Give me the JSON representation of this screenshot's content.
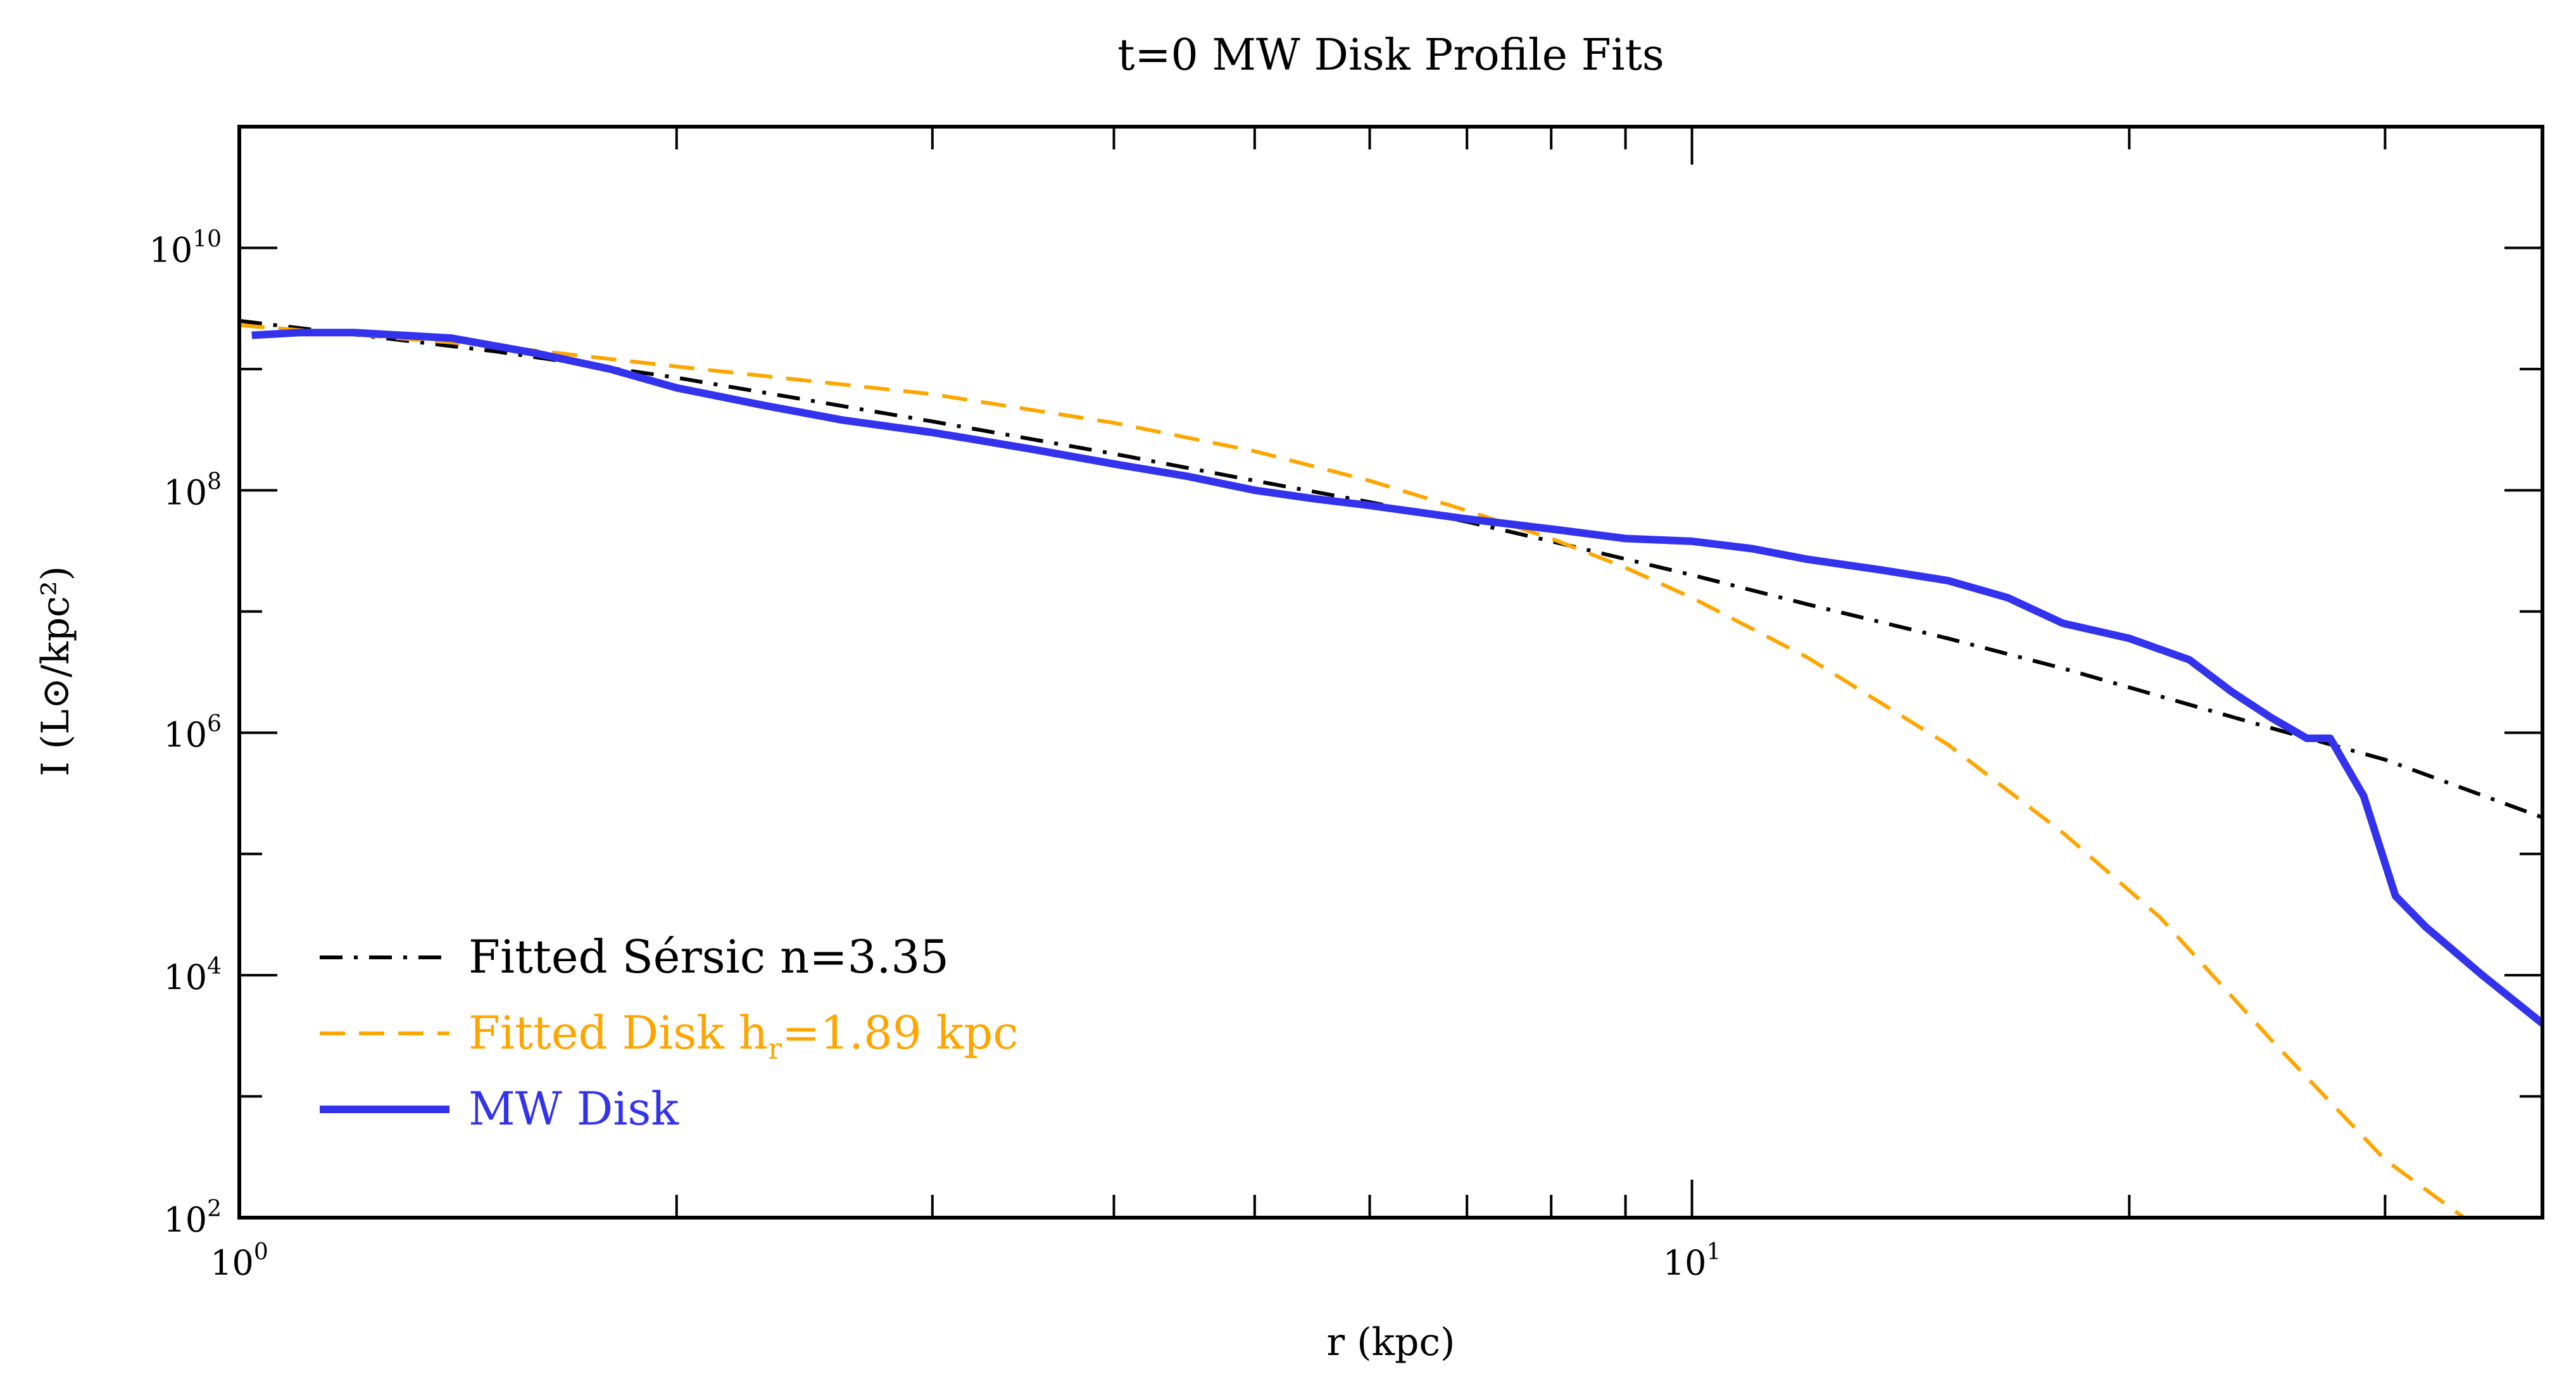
{
  "chart_data": {
    "type": "line",
    "title": "t=0 MW Disk Profile Fits",
    "xlabel": "r (kpc)",
    "ylabel": "I (L⊙/kpc²)",
    "xscale": "log",
    "yscale": "log",
    "xlim": [
      1.0,
      38.5
    ],
    "ylim": [
      100,
      100000000000
    ],
    "x_ticks": [
      {
        "value": 1,
        "base": "10",
        "exp": "0"
      },
      {
        "value": 10,
        "base": "10",
        "exp": "1"
      }
    ],
    "y_ticks": [
      {
        "value": 100,
        "base": "10",
        "exp": "2"
      },
      {
        "value": 10000,
        "base": "10",
        "exp": "4"
      },
      {
        "value": 1000000,
        "base": "10",
        "exp": "6"
      },
      {
        "value": 100000000,
        "base": "10",
        "exp": "8"
      },
      {
        "value": 10000000000,
        "base": "10",
        "exp": "10"
      }
    ],
    "grid": false,
    "legend_position": "lower-left",
    "series": [
      {
        "name": "Fitted Sérsic n=3.35",
        "label_parts": [
          "Fitted Sérsic n=3.35"
        ],
        "color": "#000000",
        "style": "dashdot",
        "x": [
          1.0,
          1.5,
          2.0,
          3.0,
          4.0,
          5.0,
          6.0,
          7.0,
          8.0,
          10.0,
          12.0,
          15.0,
          18.0,
          21.0,
          25.0,
          30.0,
          38.5
        ],
        "y": [
          2500000000,
          1400000000,
          850000000,
          370000000,
          200000000,
          120000000,
          80000000,
          55000000,
          38000000,
          20000000,
          11500000,
          6000000,
          3400000,
          2000000,
          1100000,
          600000,
          200000
        ]
      },
      {
        "name": "Fitted Disk hᵣ=1.89 kpc",
        "label_parts": [
          "Fitted Disk h",
          "r",
          "=1.89 kpc"
        ],
        "color": "#FFA500",
        "style": "dashed",
        "x": [
          1.0,
          1.5,
          2.0,
          3.0,
          4.0,
          5.0,
          6.0,
          7.0,
          8.0,
          9.0,
          10.0,
          12.0,
          15.0,
          18.0,
          21.0,
          25.0,
          30.0,
          34.0,
          36.5
        ],
        "y": [
          2300000000,
          1550000000,
          1050000000,
          620000000,
          360000000,
          210000000,
          120000000,
          68000000,
          40000000,
          23000000,
          13000000,
          4200000,
          800000,
          150000,
          30000,
          3000,
          300,
          100,
          40
        ]
      },
      {
        "name": "MW Disk",
        "label_parts": [
          "MW Disk"
        ],
        "color": "#3333EE",
        "style": "solid",
        "x": [
          1.02,
          1.1,
          1.2,
          1.4,
          1.6,
          1.8,
          2.0,
          2.3,
          2.6,
          3.0,
          3.5,
          4.0,
          4.5,
          5.0,
          5.5,
          6.0,
          7.0,
          8.0,
          9.0,
          10.0,
          11.0,
          12.0,
          13.5,
          15.0,
          16.5,
          18.0,
          20.0,
          22.0,
          23.5,
          25.0,
          26.5,
          27.5,
          29.0,
          30.5,
          32.0,
          35.0,
          38.5
        ],
        "y": [
          1900000000,
          2000000000,
          2000000000,
          1800000000,
          1350000000,
          1000000000,
          700000000,
          500000000,
          380000000,
          300000000,
          220000000,
          165000000,
          130000000,
          100000000,
          85000000,
          75000000,
          58000000,
          48000000,
          40000000,
          38000000,
          33000000,
          27000000,
          22000000,
          18000000,
          13000000,
          8000000,
          6000000,
          4000000,
          2200000,
          1350000,
          900000,
          900000,
          300000,
          45000,
          25000,
          10000,
          4000
        ]
      }
    ]
  }
}
